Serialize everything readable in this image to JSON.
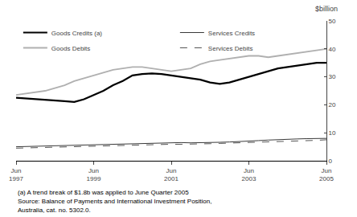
{
  "chart_data": {
    "type": "line",
    "title": "$billion",
    "categories": [
      "Jun 1997",
      null,
      null,
      null,
      null,
      null,
      null,
      null,
      "Jun 1999",
      null,
      null,
      null,
      null,
      null,
      null,
      null,
      "Jun 2001",
      null,
      null,
      null,
      null,
      null,
      null,
      null,
      "Jun 2003",
      null,
      null,
      null,
      null,
      null,
      null,
      null,
      "Jun 2005"
    ],
    "series": [
      {
        "name": "Goods Credits (a)",
        "color": "#000000",
        "line_style": "solid",
        "values": [
          22.5,
          22.3,
          22.0,
          21.8,
          21.5,
          21.3,
          21.0,
          22.0,
          23.5,
          25.0,
          27.0,
          28.5,
          30.5,
          31.0,
          31.2,
          31.0,
          30.5,
          30.0,
          29.5,
          29.0,
          28.0,
          27.5,
          28.0,
          29.0,
          30.0,
          31.0,
          32.0,
          33.0,
          33.5,
          34.0,
          34.5,
          35.0,
          35.0
        ]
      },
      {
        "name": "Services Credits",
        "color": "#3a3a3a",
        "line_style": "solid",
        "values": [
          5.0,
          5.1,
          5.2,
          5.3,
          5.4,
          5.5,
          5.6,
          5.7,
          5.8,
          5.9,
          6.0,
          6.1,
          6.2,
          6.3,
          6.4,
          6.5,
          6.5,
          6.5,
          6.4,
          6.4,
          6.5,
          6.6,
          6.7,
          6.8,
          7.0,
          7.2,
          7.4,
          7.6,
          7.7,
          7.8,
          7.9,
          8.0,
          8.0
        ]
      },
      {
        "name": "Goods Debits",
        "color": "#b0b0b0",
        "line_style": "solid",
        "values": [
          23.5,
          24.0,
          24.5,
          25.0,
          26.0,
          27.0,
          28.5,
          29.5,
          30.5,
          31.5,
          32.5,
          33.0,
          33.5,
          33.5,
          33.0,
          32.5,
          32.0,
          32.5,
          33.0,
          34.5,
          35.5,
          36.0,
          36.5,
          37.0,
          37.5,
          37.5,
          37.0,
          37.5,
          38.0,
          38.5,
          39.0,
          39.5,
          40.0
        ]
      },
      {
        "name": "Services Debits",
        "color": "#555555",
        "line_style": "dashed",
        "values": [
          4.5,
          4.6,
          4.7,
          4.8,
          4.9,
          5.0,
          5.1,
          5.2,
          5.3,
          5.4,
          5.5,
          5.6,
          5.7,
          5.8,
          5.9,
          5.9,
          5.9,
          5.9,
          5.9,
          6.0,
          6.1,
          6.2,
          6.3,
          6.4,
          6.5,
          6.6,
          6.7,
          6.8,
          7.0,
          7.1,
          7.2,
          7.3,
          7.5
        ]
      }
    ],
    "ylim": [
      0,
      50
    ],
    "yticks": [
      0,
      10,
      20,
      30,
      40,
      50
    ],
    "grid": false,
    "legend": "upper left",
    "annotations": [
      "(a) A trend break of $1.8b was applied to June Quarter 2005",
      "Source: Balance of Payments and International Investment Position,",
      "Australia, cat. no. 5302.0."
    ]
  }
}
